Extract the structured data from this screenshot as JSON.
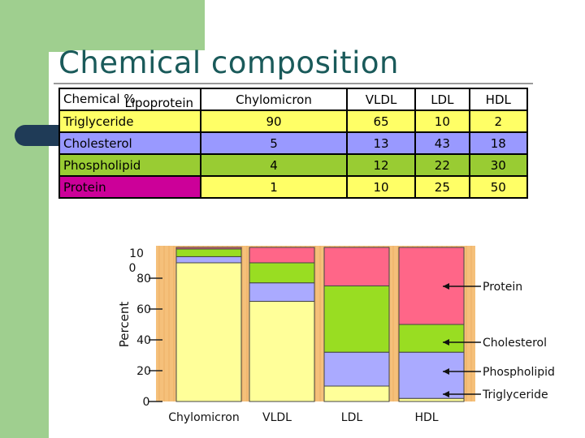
{
  "title": "Chemical composition",
  "table": {
    "header_lipoprotein": "Lipoprotein",
    "header_chemical": "Chemical %",
    "columns": [
      "Chylomicron",
      "VLDL",
      "LDL",
      "HDL"
    ],
    "rows": [
      {
        "label": "Triglyceride",
        "values": [
          "90",
          "65",
          "10",
          "2"
        ]
      },
      {
        "label": "Cholesterol",
        "values": [
          "5",
          "13",
          "43",
          "18"
        ]
      },
      {
        "label": "Phospholipid",
        "values": [
          "4",
          "12",
          "22",
          "30"
        ]
      },
      {
        "label": "Protein",
        "values": [
          "1",
          "10",
          "25",
          "50"
        ]
      }
    ]
  },
  "chart_data": {
    "type": "bar",
    "stacked": true,
    "categories": [
      "Chylomicron",
      "VLDL",
      "LDL",
      "HDL"
    ],
    "ylabel": "Percent",
    "yticks": [
      "10\n0",
      "80",
      "60",
      "40",
      "20",
      "0"
    ],
    "ylim": [
      0,
      100
    ],
    "series": [
      {
        "name": "Triglyceride",
        "values": [
          90,
          65,
          10,
          2
        ],
        "color": "#ffff99"
      },
      {
        "name": "Phospholipid",
        "values": [
          4,
          12,
          22,
          30
        ],
        "color": "#aaaaff"
      },
      {
        "name": "Cholesterol",
        "values": [
          5,
          13,
          43,
          18
        ],
        "color": "#99dd22"
      },
      {
        "name": "Protein",
        "values": [
          1,
          10,
          25,
          50
        ],
        "color": "#ff6688"
      }
    ]
  },
  "colors": {
    "background_stripe": "#f5c07a",
    "triglyceride": "#ffff99",
    "phospholipid": "#aaaaff",
    "cholesterol": "#99dd22",
    "protein": "#ff6688"
  }
}
